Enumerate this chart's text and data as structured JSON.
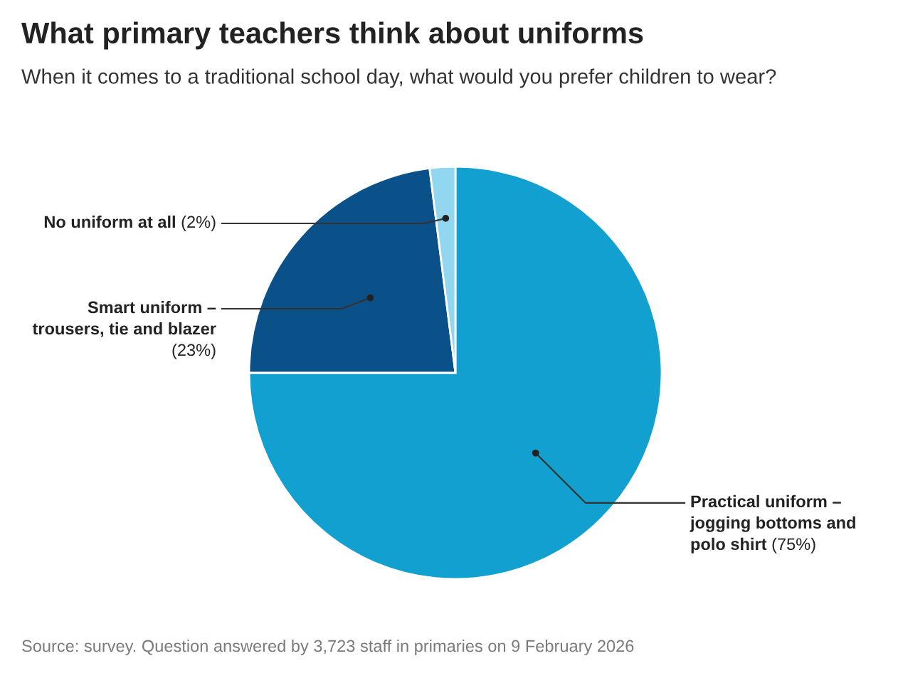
{
  "chart_data": {
    "type": "pie",
    "title": "What primary teachers think about uniforms",
    "subtitle": "When it comes to a traditional school day, what would you prefer children to wear?",
    "categories": [
      "Practical uniform – jogging bottoms and polo shirt",
      "Smart uniform – trousers, tie and blazer",
      "No uniform at all"
    ],
    "values": [
      75,
      23,
      2
    ],
    "value_labels": [
      "(75%)",
      "(23%)",
      "(2%)"
    ],
    "colors": [
      "#11a0d0",
      "#0a5189",
      "#90d7ef"
    ],
    "annotations": [
      "Source: survey. Question answered by 3,723 staff in primaries on 9 February 2026"
    ]
  }
}
